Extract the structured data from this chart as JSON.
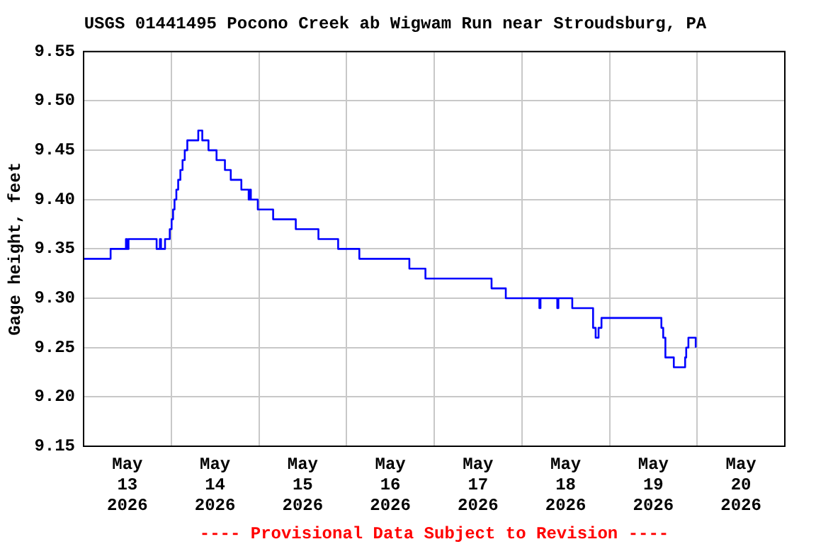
{
  "chart_data": {
    "type": "step",
    "title": "USGS 01441495 Pocono Creek ab Wigwam Run near Stroudsburg, PA",
    "ylabel": "Gage height, feet",
    "annotations": [
      "---- Provisional Data Subject to Revision ----"
    ],
    "x": [
      "2026-05-13T00:00",
      "2026-05-13T07:24",
      "2026-05-13T11:36",
      "2026-05-13T11:54",
      "2026-05-13T12:18",
      "2026-05-13T20:00",
      "2026-05-13T20:54",
      "2026-05-13T21:12",
      "2026-05-13T22:18",
      "2026-05-13T23:36",
      "2026-05-14T00:06",
      "2026-05-14T00:30",
      "2026-05-14T00:54",
      "2026-05-14T01:24",
      "2026-05-14T01:54",
      "2026-05-14T02:30",
      "2026-05-14T03:06",
      "2026-05-14T03:42",
      "2026-05-14T04:24",
      "2026-05-14T07:24",
      "2026-05-14T08:30",
      "2026-05-14T10:12",
      "2026-05-14T12:24",
      "2026-05-14T14:42",
      "2026-05-14T16:18",
      "2026-05-14T19:12",
      "2026-05-14T21:12",
      "2026-05-14T21:30",
      "2026-05-14T21:48",
      "2026-05-14T23:42",
      "2026-05-15T03:54",
      "2026-05-15T10:06",
      "2026-05-15T16:18",
      "2026-05-15T21:42",
      "2026-05-16T03:30",
      "2026-05-16T17:12",
      "2026-05-16T21:36",
      "2026-05-17T15:42",
      "2026-05-17T19:36",
      "2026-05-18T04:48",
      "2026-05-18T05:06",
      "2026-05-18T09:42",
      "2026-05-18T10:00",
      "2026-05-18T13:48",
      "2026-05-18T19:30",
      "2026-05-18T20:12",
      "2026-05-18T21:00",
      "2026-05-18T21:48",
      "2026-05-19T14:12",
      "2026-05-19T14:42",
      "2026-05-19T15:18",
      "2026-05-19T17:36",
      "2026-05-19T20:42",
      "2026-05-19T21:00",
      "2026-05-19T21:36",
      "2026-05-19T23:36"
    ],
    "series": [
      {
        "color": "#0000ff",
        "values": [
          9.34,
          9.35,
          9.36,
          9.35,
          9.36,
          9.35,
          9.36,
          9.35,
          9.36,
          9.37,
          9.38,
          9.39,
          9.4,
          9.41,
          9.42,
          9.43,
          9.44,
          9.45,
          9.46,
          9.47,
          9.46,
          9.45,
          9.44,
          9.43,
          9.42,
          9.41,
          9.4,
          9.41,
          9.4,
          9.39,
          9.38,
          9.37,
          9.36,
          9.35,
          9.34,
          9.33,
          9.32,
          9.31,
          9.3,
          9.29,
          9.3,
          9.29,
          9.3,
          9.29,
          9.27,
          9.26,
          9.27,
          9.28,
          9.27,
          9.26,
          9.24,
          9.23,
          9.24,
          9.25,
          9.26,
          9.25
        ]
      }
    ],
    "xlim": [
      "2026-05-13",
      "2026-05-21"
    ],
    "xticks": [
      {
        "value": "2026-05-13T12:00",
        "label": "May\n13\n2026"
      },
      {
        "value": "2026-05-14",
        "label": null
      },
      {
        "value": "2026-05-14T12:00",
        "label": "May\n14\n2026"
      },
      {
        "value": "2026-05-15",
        "label": null
      },
      {
        "value": "2026-05-15T12:00",
        "label": "May\n15\n2026"
      },
      {
        "value": "2026-05-16",
        "label": null
      },
      {
        "value": "2026-05-16T12:00",
        "label": "May\n16\n2026"
      },
      {
        "value": "2026-05-17",
        "label": null
      },
      {
        "value": "2026-05-17T12:00",
        "label": "May\n17\n2026"
      },
      {
        "value": "2026-05-18",
        "label": null
      },
      {
        "value": "2026-05-18T12:00",
        "label": "May\n18\n2026"
      },
      {
        "value": "2026-05-19",
        "label": null
      },
      {
        "value": "2026-05-19T12:00",
        "label": "May\n19\n2026"
      },
      {
        "value": "2026-05-20",
        "label": null
      },
      {
        "value": "2026-05-20T12:00",
        "label": "May\n20\n2026"
      }
    ],
    "ylim": [
      9.15,
      9.55
    ],
    "yticks": [
      {
        "value": 9.15,
        "label": "9.15"
      },
      {
        "value": 9.2,
        "label": "9.20"
      },
      {
        "value": 9.25,
        "label": "9.25"
      },
      {
        "value": 9.3,
        "label": "9.30"
      },
      {
        "value": 9.35,
        "label": "9.35"
      },
      {
        "value": 9.4,
        "label": "9.40"
      },
      {
        "value": 9.45,
        "label": "9.45"
      },
      {
        "value": 9.5,
        "label": "9.50"
      },
      {
        "value": 9.55,
        "label": "9.55"
      }
    ],
    "grid": true,
    "legend": false,
    "marker": "none",
    "line_style": "solid"
  }
}
